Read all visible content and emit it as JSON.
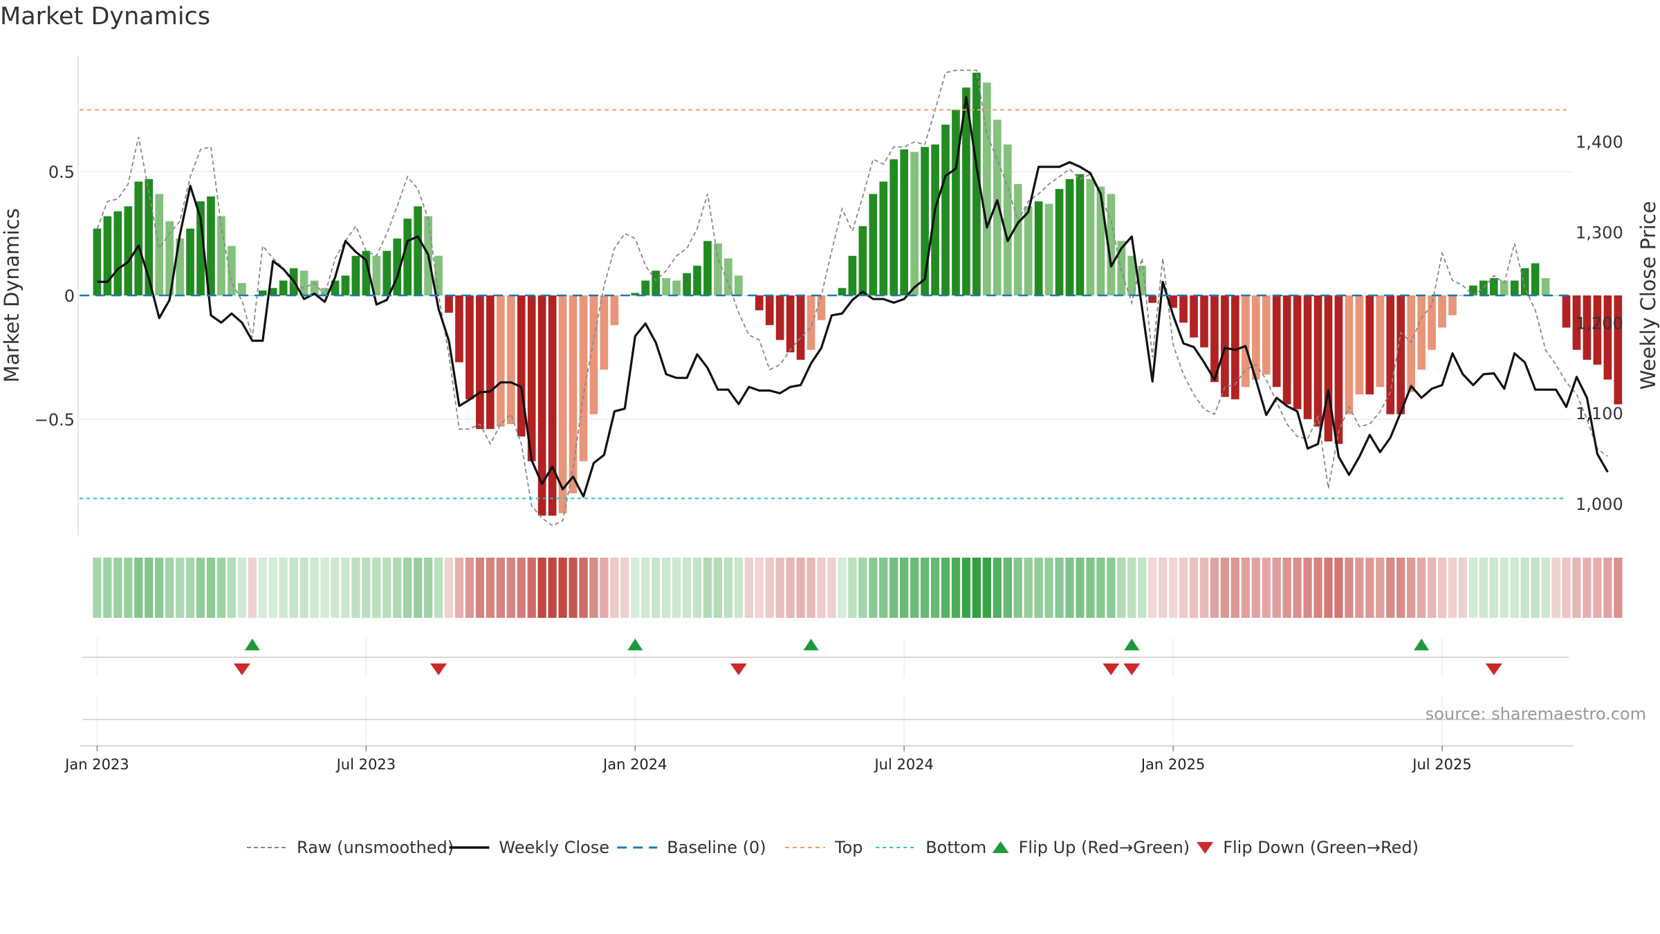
{
  "title": "Market Dynamics",
  "source": "source: sharemaestro.com",
  "colors": {
    "green_strong": "#228B22",
    "green_light": "#83C17D",
    "red_strong": "#B22222",
    "red_light": "#E8957A",
    "raw": "#888888",
    "close": "#111111",
    "baseline": "#1F77B4",
    "top": "#E8A46A",
    "bottom": "#22BFCF",
    "flip_up": "#1E9A3C",
    "flip_down": "#CC2A2A"
  },
  "legend": [
    {
      "key": "raw",
      "label": "Raw (unsmoothed)"
    },
    {
      "key": "close",
      "label": "Weekly Close"
    },
    {
      "key": "baseline",
      "label": "Baseline (0)"
    },
    {
      "key": "top",
      "label": "Top"
    },
    {
      "key": "bottom",
      "label": "Bottom"
    },
    {
      "key": "flip_up",
      "label": "Flip Up (Red→Green)"
    },
    {
      "key": "flip_down",
      "label": "Flip Down (Green→Red)"
    }
  ],
  "chart_data": {
    "type": "bar",
    "title": "Market Dynamics",
    "ylabel": "Market Dynamics",
    "ylabel_right": "Weekly Close Price",
    "ylim": [
      -0.97,
      0.97
    ],
    "ylim_right": [
      965,
      1495
    ],
    "yticks": [
      {
        "value": -0.5,
        "label": "−0.5"
      },
      {
        "value": 0,
        "label": "0"
      },
      {
        "value": 0.5,
        "label": "0.5"
      }
    ],
    "yticks_right": [
      {
        "value": 1000,
        "label": "1,000"
      },
      {
        "value": 1100,
        "label": "1,100"
      },
      {
        "value": 1200,
        "label": "1,200"
      },
      {
        "value": 1300,
        "label": "1,300"
      },
      {
        "value": 1400,
        "label": "1,400"
      }
    ],
    "xticks": [
      {
        "week": 0,
        "label": "Jan 2023"
      },
      {
        "week": 26,
        "label": "Jul 2023"
      },
      {
        "week": 52,
        "label": "Jan 2024"
      },
      {
        "week": 78,
        "label": "Jul 2024"
      },
      {
        "week": 104,
        "label": "Jan 2025"
      },
      {
        "week": 130,
        "label": "Jul 2025"
      }
    ],
    "first_week": "2023-01-02",
    "x_week_range": [
      -1.7,
      142.7
    ],
    "top_line": 0.75,
    "bottom_line": -0.82,
    "baseline": 0,
    "dynamics": [
      0.27,
      0.32,
      0.34,
      0.36,
      0.46,
      0.47,
      0.41,
      0.3,
      0.23,
      0.27,
      0.38,
      0.4,
      0.32,
      0.2,
      0.05,
      0.0,
      0.02,
      0.03,
      0.06,
      0.11,
      0.1,
      0.06,
      0.03,
      0.06,
      0.08,
      0.16,
      0.18,
      0.16,
      0.18,
      0.23,
      0.31,
      0.36,
      0.32,
      0.16,
      -0.07,
      -0.27,
      -0.42,
      -0.54,
      -0.54,
      -0.53,
      -0.52,
      -0.57,
      -0.67,
      -0.89,
      -0.89,
      -0.88,
      -0.8,
      -0.67,
      -0.48,
      -0.3,
      -0.12,
      0.0,
      0.01,
      0.06,
      0.1,
      0.07,
      0.06,
      0.09,
      0.12,
      0.22,
      0.21,
      0.15,
      0.08,
      0.0,
      -0.06,
      -0.12,
      -0.18,
      -0.23,
      -0.26,
      -0.22,
      -0.1,
      0.0,
      0.03,
      0.16,
      0.28,
      0.41,
      0.46,
      0.55,
      0.59,
      0.58,
      0.6,
      0.61,
      0.69,
      0.75,
      0.84,
      0.9,
      0.86,
      0.71,
      0.61,
      0.45,
      0.36,
      0.38,
      0.37,
      0.43,
      0.47,
      0.49,
      0.47,
      0.44,
      0.41,
      0.22,
      0.16,
      0.12,
      -0.03,
      0.0,
      -0.05,
      -0.11,
      -0.17,
      -0.21,
      -0.35,
      -0.41,
      -0.42,
      -0.37,
      -0.34,
      -0.32,
      -0.37,
      -0.44,
      -0.46,
      -0.5,
      -0.53,
      -0.59,
      -0.6,
      -0.48,
      -0.4,
      -0.4,
      -0.37,
      -0.48,
      -0.48,
      -0.39,
      -0.3,
      -0.22,
      -0.13,
      -0.08,
      0.0,
      0.04,
      0.06,
      0.07,
      0.06,
      0.06,
      0.11,
      0.13,
      0.07,
      0.0,
      -0.13,
      -0.22,
      -0.26,
      -0.28,
      -0.34,
      -0.44
    ],
    "raw": [
      0.27,
      0.38,
      0.39,
      0.45,
      0.64,
      0.42,
      0.19,
      0.25,
      0.3,
      0.48,
      0.59,
      0.6,
      0.28,
      0.05,
      -0.02,
      -0.17,
      0.2,
      0.15,
      0.11,
      0.04,
      0.03,
      0.05,
      0.0,
      0.15,
      0.22,
      0.28,
      0.18,
      0.16,
      0.25,
      0.36,
      0.48,
      0.43,
      0.31,
      0.0,
      -0.24,
      -0.54,
      -0.54,
      -0.52,
      -0.6,
      -0.52,
      -0.48,
      -0.6,
      -0.85,
      -0.9,
      -0.93,
      -0.91,
      -0.7,
      -0.4,
      -0.18,
      0.04,
      0.19,
      0.25,
      0.23,
      0.12,
      0.06,
      0.1,
      0.16,
      0.19,
      0.27,
      0.41,
      0.15,
      0.05,
      -0.07,
      -0.16,
      -0.18,
      -0.3,
      -0.28,
      -0.22,
      -0.17,
      -0.13,
      0.0,
      0.18,
      0.35,
      0.26,
      0.4,
      0.55,
      0.53,
      0.6,
      0.6,
      0.62,
      0.61,
      0.75,
      0.9,
      0.91,
      0.91,
      0.91,
      0.65,
      0.55,
      0.44,
      0.3,
      0.38,
      0.41,
      0.45,
      0.48,
      0.51,
      0.47,
      0.49,
      0.4,
      0.3,
      0.1,
      -0.03,
      0.15,
      -0.25,
      0.15,
      -0.2,
      -0.32,
      -0.4,
      -0.46,
      -0.48,
      -0.37,
      -0.36,
      -0.3,
      -0.28,
      -0.34,
      -0.43,
      -0.52,
      -0.57,
      -0.58,
      -0.49,
      -0.78,
      -0.55,
      -0.45,
      -0.53,
      -0.52,
      -0.47,
      -0.39,
      -0.15,
      -0.19,
      -0.09,
      -0.04,
      0.17,
      0.06,
      0.04,
      0.0,
      0.03,
      0.08,
      0.05,
      0.21,
      0.03,
      -0.06,
      -0.22,
      -0.28,
      -0.35,
      -0.4,
      -0.5,
      -0.62,
      -0.65
    ],
    "close": [
      1245,
      1245,
      1259,
      1267,
      1285,
      1249,
      1205,
      1225,
      1297,
      1351,
      1315,
      1208,
      1200,
      1210,
      1200,
      1180,
      1180,
      1268,
      1259,
      1246,
      1226,
      1232,
      1223,
      1250,
      1290,
      1278,
      1269,
      1220,
      1225,
      1250,
      1290,
      1295,
      1275,
      1215,
      1180,
      1108,
      1115,
      1123,
      1124,
      1134,
      1134,
      1129,
      1048,
      1022,
      1041,
      1016,
      1030,
      1008,
      1045,
      1054,
      1102,
      1105,
      1185,
      1199,
      1178,
      1143,
      1139,
      1139,
      1165,
      1150,
      1126,
      1126,
      1110,
      1129,
      1125,
      1125,
      1122,
      1129,
      1131,
      1155,
      1172,
      1208,
      1210,
      1225,
      1234,
      1226,
      1226,
      1222,
      1226,
      1239,
      1248,
      1326,
      1362,
      1370,
      1449,
      1372,
      1305,
      1335,
      1290,
      1310,
      1322,
      1372,
      1372,
      1372,
      1377,
      1372,
      1365,
      1342,
      1262,
      1282,
      1295,
      1216,
      1135,
      1245,
      1208,
      1177,
      1173,
      1156,
      1137,
      1172,
      1170,
      1174,
      1137,
      1098,
      1117,
      1108,
      1102,
      1061,
      1066,
      1125,
      1052,
      1032,
      1052,
      1076,
      1057,
      1073,
      1101,
      1130,
      1117,
      1127,
      1131,
      1166,
      1143,
      1131,
      1143,
      1144,
      1127,
      1166,
      1156,
      1126,
      1126,
      1126,
      1107,
      1140,
      1117,
      1055,
      1035
    ],
    "flip_up_weeks": [
      15,
      52,
      69,
      100,
      128
    ],
    "flip_down_weeks": [
      14,
      33,
      62,
      98,
      100,
      135
    ]
  }
}
